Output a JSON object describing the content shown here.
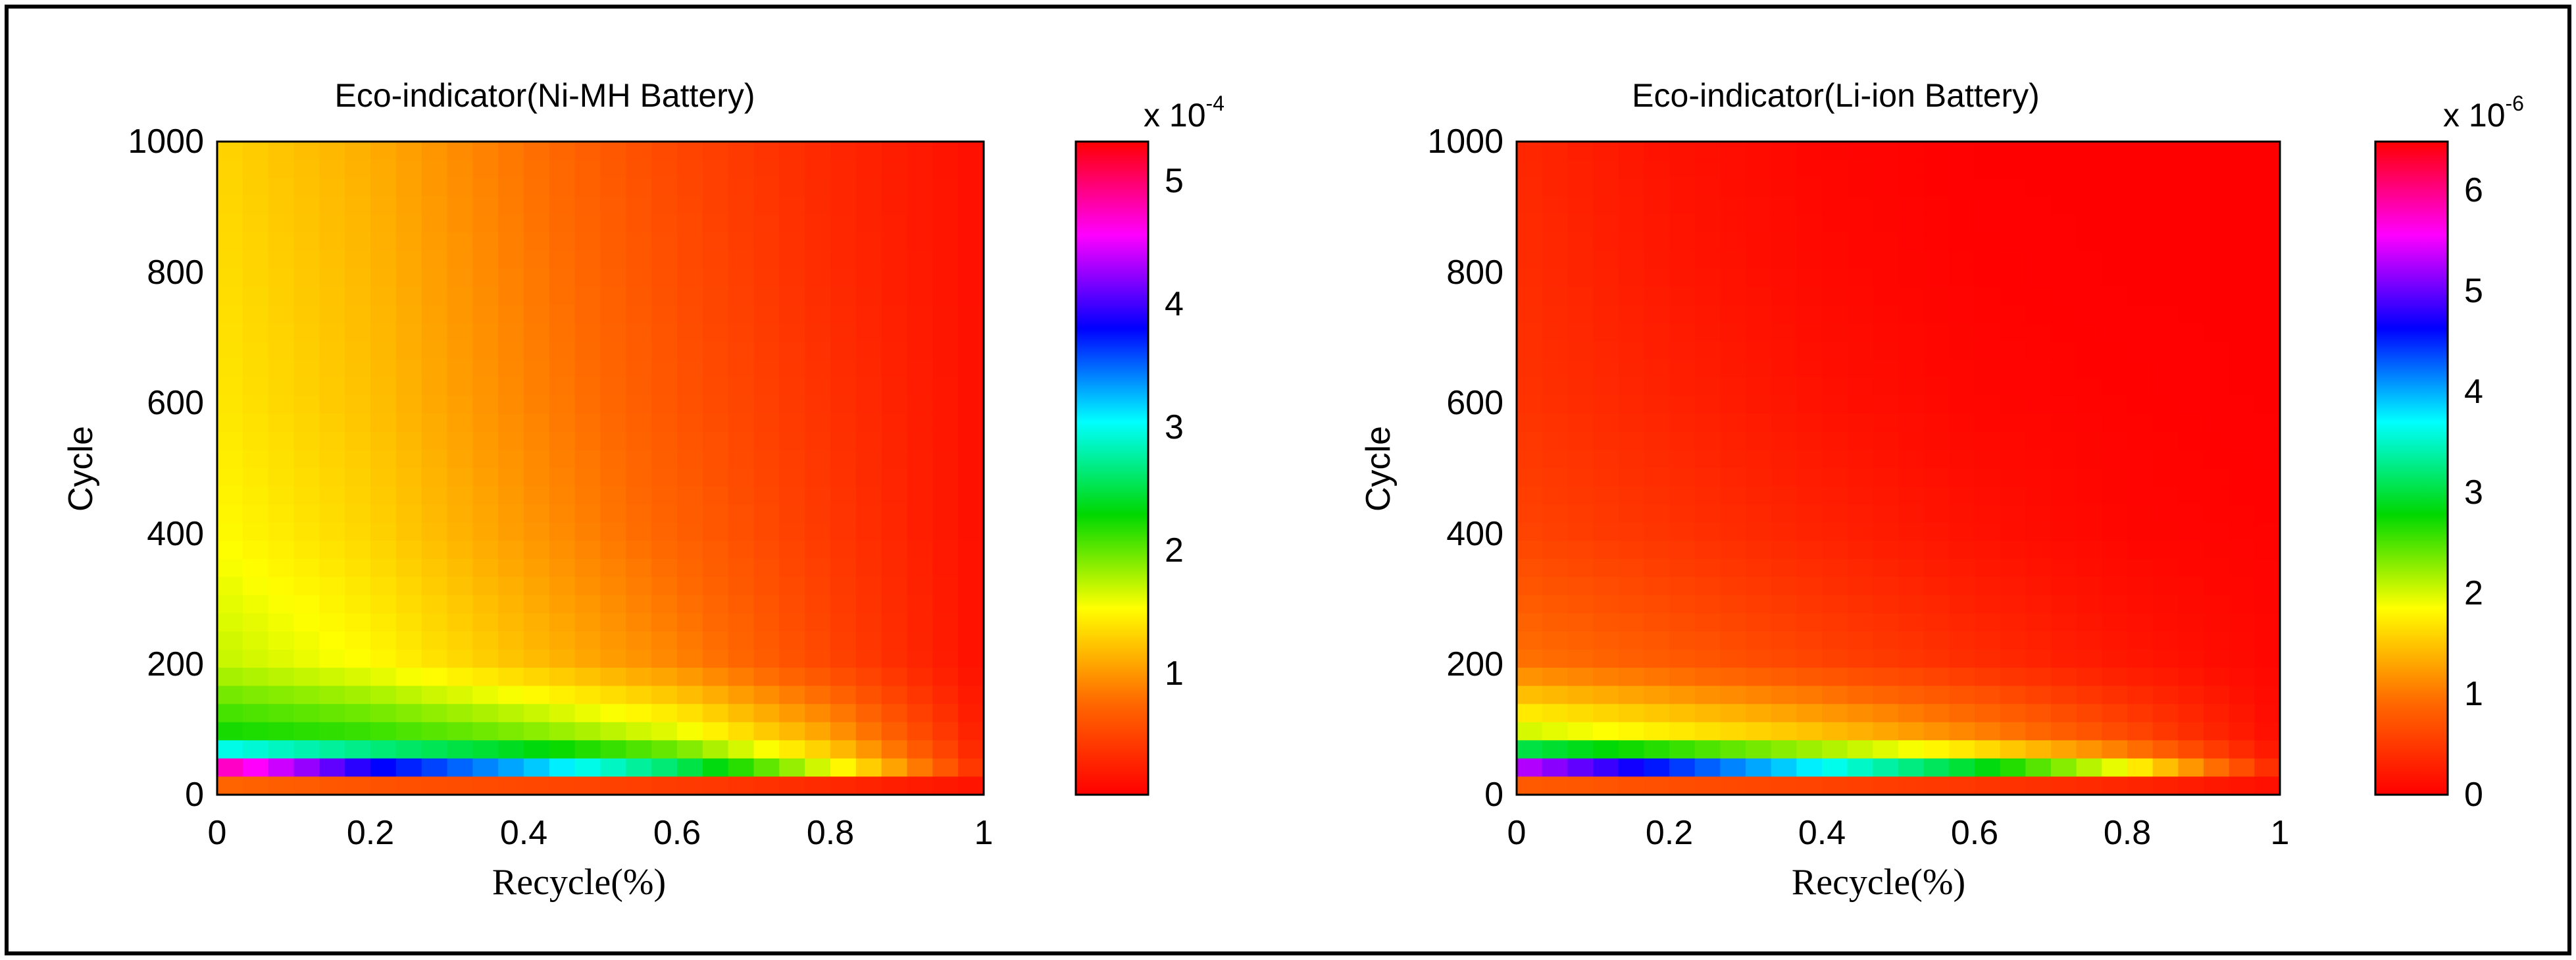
{
  "figure": {
    "border_color": "#000000",
    "background": "#ffffff"
  },
  "chart_data": [
    {
      "type": "heatmap",
      "title": "Eco-indicator(Ni-MH Battery)",
      "xlabel": "Recycle(%)",
      "ylabel": "Cycle",
      "xlim": [
        0,
        1
      ],
      "ylim": [
        0,
        1000
      ],
      "xticks": [
        "0",
        "0.2",
        "0.4",
        "0.6",
        "0.8",
        "1"
      ],
      "yticks": [
        "0",
        "200",
        "400",
        "600",
        "800",
        "1000"
      ],
      "colorbar": {
        "label": "x 10",
        "exponent": "-4",
        "range": [
          0,
          5.3
        ],
        "ticks": [
          "1",
          "2",
          "3",
          "4",
          "5"
        ],
        "colors": [
          "#ff0000",
          "#ff6a00",
          "#ffff00",
          "#00d800",
          "#00ffff",
          "#0000ff",
          "#ff00ff",
          "#ff0000"
        ]
      },
      "field_samples": {
        "recycle": [
          0,
          0.2,
          0.4,
          0.6,
          0.8,
          1
        ],
        "cycle": [
          10,
          40,
          80,
          200,
          400,
          600,
          800,
          1000
        ],
        "values_x1e-4": [
          [
            0.1,
            0.1,
            0.1,
            0.1,
            0.1,
            0.1
          ],
          [
            4.9,
            3.9,
            3.3,
            2.6,
            1.6,
            0.3
          ],
          [
            2.3,
            2.2,
            2.0,
            1.7,
            1.1,
            0.2
          ],
          [
            1.7,
            1.5,
            1.2,
            0.9,
            0.5,
            0.1
          ],
          [
            1.5,
            1.3,
            1.0,
            0.7,
            0.4,
            0.1
          ],
          [
            1.4,
            1.2,
            0.9,
            0.6,
            0.35,
            0.1
          ],
          [
            1.35,
            1.15,
            0.85,
            0.55,
            0.3,
            0.1
          ],
          [
            1.3,
            1.1,
            0.8,
            0.5,
            0.28,
            0.1
          ]
        ]
      }
    },
    {
      "type": "heatmap",
      "title": "Eco-indicator(Li-ion Battery)",
      "xlabel": "Recycle(%)",
      "ylabel": "Cycle",
      "xlim": [
        0,
        1
      ],
      "ylim": [
        0,
        1000
      ],
      "xticks": [
        "0",
        "0.2",
        "0.4",
        "0.6",
        "0.8",
        "1"
      ],
      "yticks": [
        "0",
        "200",
        "400",
        "600",
        "800",
        "1000"
      ],
      "colorbar": {
        "label": "x 10",
        "exponent": "-6",
        "range": [
          0,
          6.5
        ],
        "ticks": [
          "0",
          "1",
          "2",
          "3",
          "4",
          "5",
          "6"
        ],
        "colors": [
          "#ff0000",
          "#ff6a00",
          "#ffff00",
          "#00d800",
          "#00ffff",
          "#0000ff",
          "#ff00ff",
          "#ff0000"
        ]
      },
      "field_samples": {
        "recycle": [
          0,
          0.2,
          0.4,
          0.6,
          0.8,
          1
        ],
        "cycle": [
          10,
          40,
          80,
          200,
          400,
          600,
          800,
          1000
        ],
        "values_x1e-6": [
          [
            0.1,
            0.1,
            0.1,
            0.1,
            0.1,
            0.1
          ],
          [
            5.5,
            4.6,
            3.8,
            3.0,
            1.9,
            0.3
          ],
          [
            2.2,
            1.9,
            1.6,
            1.2,
            0.7,
            0.1
          ],
          [
            1.0,
            0.8,
            0.6,
            0.4,
            0.2,
            0.05
          ],
          [
            0.6,
            0.45,
            0.3,
            0.15,
            0.05,
            0.02
          ],
          [
            0.45,
            0.3,
            0.15,
            0.05,
            0.02,
            0.0
          ],
          [
            0.4,
            0.2,
            0.08,
            0.02,
            0.0,
            0.0
          ],
          [
            0.35,
            0.15,
            0.05,
            0.0,
            0.0,
            0.0
          ]
        ]
      }
    }
  ]
}
